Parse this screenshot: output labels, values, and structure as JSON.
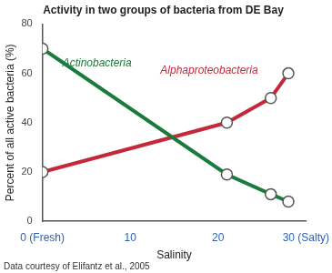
{
  "chart_data": {
    "type": "line",
    "title": "Activity in two groups of bacteria from DE Bay",
    "x_label": "Salinity",
    "y_label": "Percent of all active bacteria (%)",
    "x": [
      0,
      21,
      26,
      28
    ],
    "series": [
      {
        "name": "Actinobacteria",
        "color": "#1b7a3e",
        "values": [
          70,
          19,
          11,
          8
        ],
        "marker": "circle",
        "line_style": "solid"
      },
      {
        "name": "Alphaproteobacteria",
        "color": "#c3283b",
        "values": [
          20,
          40,
          50,
          60
        ],
        "marker": "circle",
        "line_style": "solid"
      }
    ],
    "xlim": [
      0,
      30
    ],
    "xticks": [
      {
        "value": 0,
        "label": "0 (Fresh)"
      },
      10,
      20,
      {
        "value": 30,
        "label": "30 (Salty)"
      }
    ],
    "ylim": [
      0,
      80
    ],
    "yticks": [
      0,
      20,
      40,
      60,
      80
    ],
    "grid": false,
    "annotations": [
      "Data courtesy of Elifantz et al., 2005"
    ]
  }
}
